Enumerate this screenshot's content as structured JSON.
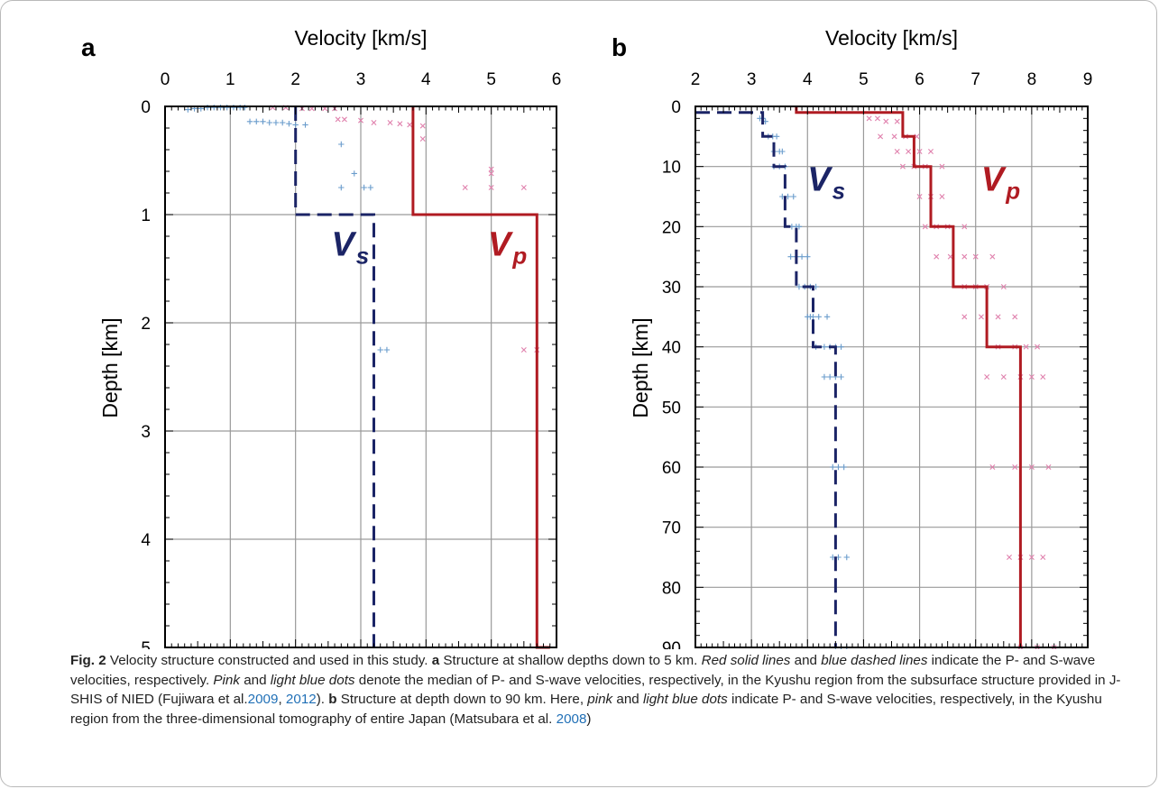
{
  "colors": {
    "vs_line": "#1b2466",
    "vp_line": "#b01b22",
    "vs_dots": "#6a9ccc",
    "vp_dots": "#e081ad",
    "grid": "#9a9a9a",
    "link": "#1f6fb6"
  },
  "chart_data": [
    {
      "type": "line",
      "panel_label": "a",
      "xlabel": "Velocity [km/s]",
      "ylabel": "Depth [km]",
      "xlim": [
        0,
        6
      ],
      "ylim": [
        0,
        5
      ],
      "x_ticks": [
        "0",
        "1",
        "2",
        "3",
        "4",
        "5",
        "6"
      ],
      "y_ticks": [
        "0",
        "1",
        "2",
        "3",
        "4",
        "5"
      ],
      "grid": true,
      "x_axis_position": "top",
      "y_inverted": true,
      "annotations": [
        {
          "series": "vs",
          "main": "V",
          "sub": "s",
          "x": 2.55,
          "y": 1.38
        },
        {
          "series": "vp",
          "main": "V",
          "sub": "p",
          "x": 4.95,
          "y": 1.38
        }
      ],
      "series": [
        {
          "key": "vp",
          "style": "solid",
          "color": "#b01b22",
          "points": [
            [
              3.8,
              0
            ],
            [
              3.8,
              1
            ],
            [
              5.7,
              1
            ],
            [
              5.7,
              5
            ],
            [
              5.9,
              5
            ]
          ]
        },
        {
          "key": "vs",
          "style": "dashed",
          "color": "#1b2466",
          "points": [
            [
              2.0,
              0
            ],
            [
              2.0,
              1
            ],
            [
              3.2,
              1
            ],
            [
              3.2,
              5
            ]
          ]
        },
        {
          "key": "vs_dots",
          "marker": "plus",
          "color": "#6a9ccc",
          "points": [
            [
              0.35,
              0.03
            ],
            [
              0.45,
              0.02
            ],
            [
              0.55,
              0.02
            ],
            [
              0.65,
              0.01
            ],
            [
              0.75,
              0.01
            ],
            [
              0.85,
              0.01
            ],
            [
              0.95,
              0.01
            ],
            [
              1.05,
              0.01
            ],
            [
              1.15,
              0.01
            ],
            [
              1.22,
              0.01
            ],
            [
              1.3,
              0.14
            ],
            [
              1.4,
              0.14
            ],
            [
              1.5,
              0.14
            ],
            [
              1.6,
              0.15
            ],
            [
              1.7,
              0.15
            ],
            [
              1.8,
              0.15
            ],
            [
              1.9,
              0.16
            ],
            [
              2.0,
              0.17
            ],
            [
              2.15,
              0.17
            ],
            [
              2.7,
              0.35
            ],
            [
              2.9,
              0.62
            ],
            [
              2.7,
              0.75
            ],
            [
              3.05,
              0.75
            ],
            [
              3.15,
              0.75
            ],
            [
              3.3,
              2.25
            ],
            [
              3.4,
              2.25
            ]
          ]
        },
        {
          "key": "vp_dots",
          "marker": "cross",
          "color": "#e081ad",
          "points": [
            [
              1.65,
              0.01
            ],
            [
              1.85,
              0.01
            ],
            [
              2.1,
              0.02
            ],
            [
              2.25,
              0.02
            ],
            [
              2.45,
              0.02
            ],
            [
              2.6,
              0.02
            ],
            [
              2.65,
              0.12
            ],
            [
              2.75,
              0.12
            ],
            [
              3.0,
              0.13
            ],
            [
              3.2,
              0.15
            ],
            [
              3.45,
              0.15
            ],
            [
              3.6,
              0.16
            ],
            [
              3.75,
              0.17
            ],
            [
              3.95,
              0.18
            ],
            [
              3.95,
              0.3
            ],
            [
              5.0,
              0.58
            ],
            [
              5.0,
              0.62
            ],
            [
              4.6,
              0.75
            ],
            [
              5.0,
              0.75
            ],
            [
              5.5,
              0.75
            ],
            [
              5.5,
              2.25
            ],
            [
              5.7,
              2.25
            ]
          ]
        }
      ]
    },
    {
      "type": "line",
      "panel_label": "b",
      "xlabel": "Velocity [km/s]",
      "ylabel": "Depth [km]",
      "xlim": [
        2,
        9
      ],
      "ylim": [
        0,
        90
      ],
      "x_ticks": [
        "2",
        "3",
        "4",
        "5",
        "6",
        "7",
        "8",
        "9"
      ],
      "y_ticks": [
        "0",
        "10",
        "20",
        "30",
        "40",
        "50",
        "60",
        "70",
        "80",
        "90"
      ],
      "grid": true,
      "x_axis_position": "top",
      "y_inverted": true,
      "annotations": [
        {
          "series": "vs",
          "main": "V",
          "sub": "s",
          "x": 4.0,
          "y": 14
        },
        {
          "series": "vp",
          "main": "V",
          "sub": "p",
          "x": 7.1,
          "y": 14
        }
      ],
      "series": [
        {
          "key": "vp",
          "style": "solid",
          "color": "#b01b22",
          "points": [
            [
              3.8,
              0
            ],
            [
              3.8,
              1
            ],
            [
              5.7,
              1
            ],
            [
              5.7,
              5
            ],
            [
              5.9,
              5
            ],
            [
              5.9,
              10
            ],
            [
              6.2,
              10
            ],
            [
              6.2,
              20
            ],
            [
              6.6,
              20
            ],
            [
              6.6,
              30
            ],
            [
              7.2,
              30
            ],
            [
              7.2,
              40
            ],
            [
              7.8,
              40
            ],
            [
              7.8,
              90
            ]
          ]
        },
        {
          "key": "vs",
          "style": "dashed",
          "color": "#1b2466",
          "points": [
            [
              2.0,
              1
            ],
            [
              3.2,
              1
            ],
            [
              3.2,
              5
            ],
            [
              3.4,
              5
            ],
            [
              3.4,
              10
            ],
            [
              3.6,
              10
            ],
            [
              3.6,
              20
            ],
            [
              3.8,
              20
            ],
            [
              3.8,
              30
            ],
            [
              4.1,
              30
            ],
            [
              4.1,
              40
            ],
            [
              4.5,
              40
            ],
            [
              4.5,
              90
            ]
          ]
        },
        {
          "key": "vs_dots",
          "marker": "plus",
          "color": "#6a9ccc",
          "points": [
            [
              3.15,
              2
            ],
            [
              3.2,
              2
            ],
            [
              3.25,
              2.5
            ],
            [
              3.3,
              5
            ],
            [
              3.38,
              5
            ],
            [
              3.45,
              5
            ],
            [
              3.4,
              7.5
            ],
            [
              3.5,
              7.5
            ],
            [
              3.55,
              7.5
            ],
            [
              3.4,
              10
            ],
            [
              3.5,
              10
            ],
            [
              3.6,
              10
            ],
            [
              3.55,
              15
            ],
            [
              3.65,
              15
            ],
            [
              3.75,
              15
            ],
            [
              3.72,
              20
            ],
            [
              3.8,
              20
            ],
            [
              3.85,
              20
            ],
            [
              3.7,
              25
            ],
            [
              3.8,
              25
            ],
            [
              3.9,
              25
            ],
            [
              4.0,
              25
            ],
            [
              3.85,
              30
            ],
            [
              3.95,
              30
            ],
            [
              4.05,
              30
            ],
            [
              4.15,
              30
            ],
            [
              4.0,
              35
            ],
            [
              4.05,
              35
            ],
            [
              4.1,
              35
            ],
            [
              4.2,
              35
            ],
            [
              4.35,
              35
            ],
            [
              4.15,
              40
            ],
            [
              4.3,
              40
            ],
            [
              4.4,
              40
            ],
            [
              4.5,
              40
            ],
            [
              4.6,
              40
            ],
            [
              4.3,
              45
            ],
            [
              4.4,
              45
            ],
            [
              4.5,
              45
            ],
            [
              4.6,
              45
            ],
            [
              4.45,
              60
            ],
            [
              4.55,
              60
            ],
            [
              4.65,
              60
            ],
            [
              4.45,
              75
            ],
            [
              4.55,
              75
            ],
            [
              4.7,
              75
            ],
            [
              4.5,
              90
            ],
            [
              4.6,
              90
            ],
            [
              4.7,
              90
            ]
          ]
        },
        {
          "key": "vp_dots",
          "marker": "cross",
          "color": "#e081ad",
          "points": [
            [
              5.1,
              2
            ],
            [
              5.25,
              2
            ],
            [
              5.4,
              2.5
            ],
            [
              5.6,
              2.5
            ],
            [
              5.3,
              5
            ],
            [
              5.55,
              5
            ],
            [
              5.75,
              5
            ],
            [
              5.95,
              5
            ],
            [
              5.6,
              7.5
            ],
            [
              5.8,
              7.5
            ],
            [
              6.0,
              7.5
            ],
            [
              6.2,
              7.5
            ],
            [
              5.7,
              10
            ],
            [
              5.9,
              10
            ],
            [
              6.1,
              10
            ],
            [
              6.4,
              10
            ],
            [
              6.0,
              15
            ],
            [
              6.2,
              15
            ],
            [
              6.4,
              15
            ],
            [
              6.1,
              20
            ],
            [
              6.3,
              20
            ],
            [
              6.5,
              20
            ],
            [
              6.8,
              20
            ],
            [
              6.3,
              25
            ],
            [
              6.55,
              25
            ],
            [
              6.8,
              25
            ],
            [
              7.0,
              25
            ],
            [
              7.3,
              25
            ],
            [
              6.8,
              30
            ],
            [
              7.0,
              30
            ],
            [
              7.2,
              30
            ],
            [
              7.5,
              30
            ],
            [
              6.8,
              35
            ],
            [
              7.1,
              35
            ],
            [
              7.4,
              35
            ],
            [
              7.7,
              35
            ],
            [
              7.4,
              40
            ],
            [
              7.7,
              40
            ],
            [
              7.9,
              40
            ],
            [
              8.1,
              40
            ],
            [
              7.2,
              45
            ],
            [
              7.5,
              45
            ],
            [
              7.8,
              45
            ],
            [
              8.0,
              45
            ],
            [
              8.2,
              45
            ],
            [
              7.3,
              60
            ],
            [
              7.7,
              60
            ],
            [
              8.0,
              60
            ],
            [
              8.3,
              60
            ],
            [
              7.6,
              75
            ],
            [
              7.8,
              75
            ],
            [
              8.0,
              75
            ],
            [
              8.2,
              75
            ],
            [
              7.8,
              90
            ],
            [
              8.1,
              90
            ],
            [
              8.4,
              90
            ]
          ]
        }
      ]
    }
  ],
  "caption": {
    "label": "Fig. 2",
    "seg1": "Velocity structure constructed and used in this study.",
    "a_label": "a",
    "seg2": "Structure at shallow depths down to 5 km.",
    "red_lines": "Red solid lines",
    "seg3": "and",
    "blue_lines": "blue dashed lines",
    "seg4": "indicate the P- and S-wave velocities, respectively.",
    "pink": "Pink",
    "seg5": "and",
    "light_blue_dots": "light blue dots",
    "seg6": "denote the median of P- and S-wave velocities, respectively, in the Kyushu region from the subsurface structure provided in J-SHIS of NIED (Fujiwara et al.",
    "ref_2009": "2009",
    "seg7": ",",
    "ref_2012": "2012",
    "seg8": ").",
    "b_label": "b",
    "seg9": "Structure at depth down to 90 km. Here,",
    "pink2": "pink",
    "seg10": "and",
    "light2": "light",
    "blue_dots2": "blue dots",
    "seg11": "indicate P- and S-wave velocities, respectively, in the Kyushu region from the three-dimensional tomography of entire Japan (Matsubara et al.",
    "ref_2008": "2008",
    "seg12": ")"
  }
}
